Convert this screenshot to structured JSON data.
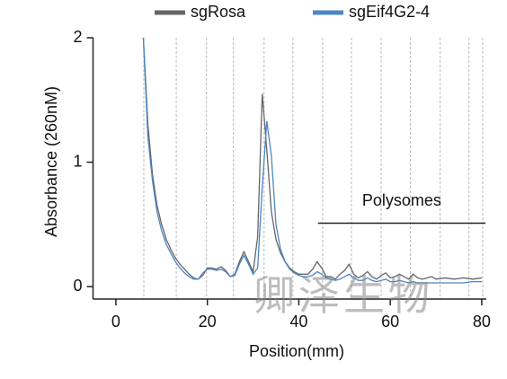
{
  "chart_data": {
    "type": "line",
    "xlabel": "Position(mm)",
    "ylabel": "Absorbance (260nM)",
    "xlim": [
      -5,
      81
    ],
    "ylim": [
      -0.1,
      2
    ],
    "xticks": [
      0,
      20,
      40,
      60,
      80
    ],
    "yticks": [
      0,
      1,
      2
    ],
    "fraction_lines": [
      6.1,
      13.2,
      19.8,
      25.7,
      32.4,
      38.7,
      45.2,
      51.5,
      58,
      64.4,
      70.9,
      77.2,
      80.2
    ],
    "annotation": {
      "text": "Polysomes",
      "x": [
        44.2,
        80.8
      ],
      "y": 0.51
    },
    "watermark": "卿泽生物",
    "x": [
      6,
      7,
      8,
      9,
      10,
      11,
      12,
      13,
      14,
      15,
      16,
      17,
      18,
      19,
      20,
      21,
      22,
      23,
      24,
      25,
      26,
      27,
      28,
      29,
      30,
      31,
      32,
      33,
      34,
      35,
      36,
      37,
      38,
      39,
      40,
      41,
      42,
      43,
      44,
      45,
      46,
      47,
      48,
      49,
      50,
      51,
      52,
      53,
      54,
      55,
      56,
      57,
      58,
      59,
      60,
      61,
      62,
      63,
      64,
      65,
      66,
      67,
      68,
      69,
      70,
      72,
      74,
      76,
      78,
      80
    ],
    "series": [
      {
        "name": "sgRosa",
        "color": "#666666",
        "values": [
          2.0,
          1.3,
          0.9,
          0.65,
          0.5,
          0.38,
          0.3,
          0.23,
          0.18,
          0.14,
          0.1,
          0.07,
          0.06,
          0.09,
          0.15,
          0.15,
          0.14,
          0.16,
          0.13,
          0.08,
          0.1,
          0.2,
          0.28,
          0.2,
          0.12,
          0.4,
          1.55,
          1.1,
          0.6,
          0.38,
          0.27,
          0.2,
          0.15,
          0.12,
          0.1,
          0.1,
          0.1,
          0.14,
          0.2,
          0.15,
          0.08,
          0.08,
          0.06,
          0.1,
          0.13,
          0.18,
          0.1,
          0.07,
          0.09,
          0.12,
          0.08,
          0.06,
          0.09,
          0.11,
          0.07,
          0.08,
          0.1,
          0.08,
          0.06,
          0.1,
          0.07,
          0.06,
          0.07,
          0.08,
          0.06,
          0.07,
          0.06,
          0.07,
          0.06,
          0.07
        ]
      },
      {
        "name": "sgEif4G2-4",
        "color": "#4a86c8",
        "values": [
          2.0,
          1.2,
          0.85,
          0.6,
          0.45,
          0.34,
          0.27,
          0.2,
          0.15,
          0.11,
          0.08,
          0.06,
          0.06,
          0.11,
          0.14,
          0.14,
          0.13,
          0.14,
          0.12,
          0.08,
          0.09,
          0.18,
          0.25,
          0.18,
          0.1,
          0.15,
          0.8,
          1.33,
          1.05,
          0.5,
          0.3,
          0.2,
          0.14,
          0.11,
          0.09,
          0.08,
          0.08,
          0.09,
          0.12,
          0.1,
          0.07,
          0.06,
          0.05,
          0.06,
          0.08,
          0.1,
          0.07,
          0.05,
          0.05,
          0.07,
          0.05,
          0.04,
          0.05,
          0.06,
          0.04,
          0.04,
          0.05,
          0.04,
          0.03,
          0.04,
          0.03,
          0.03,
          0.03,
          0.03,
          0.03,
          0.03,
          0.03,
          0.03,
          0.04,
          0.04
        ]
      }
    ]
  }
}
